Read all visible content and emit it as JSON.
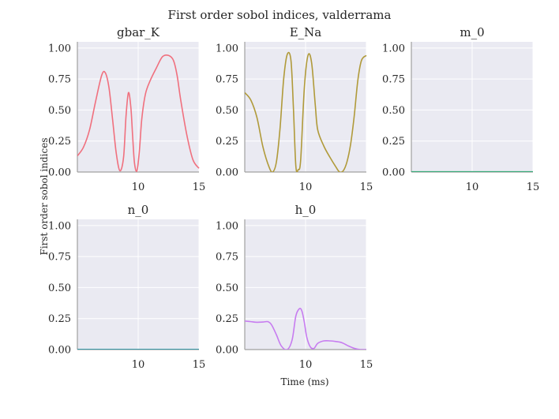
{
  "figure": {
    "title": "First order sobol indices, valderrama",
    "xlabel": "Time (ms)",
    "ylabel": "First order sobol indices"
  },
  "style": {
    "panel_bg": "#eaeaf2",
    "grid": "#ffffff",
    "spine": "#a0a0a0",
    "text": "#262626"
  },
  "chart_data": [
    {
      "type": "line",
      "title": "gbar_K",
      "color": "#f0707e",
      "xlim": [
        5,
        15
      ],
      "ylim": [
        0,
        1.05
      ],
      "xticks": [
        10,
        15
      ],
      "yticks": [
        0.0,
        0.25,
        0.5,
        0.75,
        1.0
      ],
      "xtick_labels": [
        "10",
        "15"
      ],
      "ytick_labels": [
        "0.00",
        "0.25",
        "0.50",
        "0.75",
        "1.00"
      ],
      "show_xticklabels": true,
      "x": [
        5.0,
        5.5,
        6.0,
        6.5,
        7.0,
        7.3,
        7.6,
        7.9,
        8.2,
        8.5,
        8.8,
        9.0,
        9.2,
        9.4,
        9.55,
        9.7,
        9.9,
        10.1,
        10.3,
        10.6,
        11.0,
        11.5,
        12.0,
        12.5,
        12.9,
        13.2,
        13.5,
        14.0,
        14.5,
        15.0
      ],
      "y": [
        0.13,
        0.2,
        0.34,
        0.57,
        0.78,
        0.8,
        0.68,
        0.42,
        0.15,
        0.01,
        0.12,
        0.45,
        0.64,
        0.52,
        0.28,
        0.07,
        0.01,
        0.17,
        0.43,
        0.63,
        0.74,
        0.84,
        0.93,
        0.94,
        0.9,
        0.78,
        0.58,
        0.3,
        0.1,
        0.03
      ]
    },
    {
      "type": "line",
      "title": "E_Na",
      "color": "#b09a3a",
      "xlim": [
        5,
        15
      ],
      "ylim": [
        0,
        1.05
      ],
      "xticks": [
        10,
        15
      ],
      "yticks": [
        0.0,
        0.25,
        0.5,
        0.75,
        1.0
      ],
      "xtick_labels": [
        "10",
        "15"
      ],
      "ytick_labels": [
        "0.00",
        "0.25",
        "0.50",
        "0.75",
        "1.00"
      ],
      "show_xticklabels": true,
      "x": [
        5.0,
        5.5,
        6.0,
        6.5,
        7.0,
        7.3,
        7.6,
        7.9,
        8.2,
        8.5,
        8.8,
        9.0,
        9.2,
        9.4,
        9.6,
        9.9,
        10.2,
        10.5,
        10.8,
        11.0,
        11.5,
        12.0,
        12.5,
        12.8,
        13.1,
        13.4,
        13.7,
        14.0,
        14.3,
        14.6,
        15.0
      ],
      "y": [
        0.64,
        0.58,
        0.44,
        0.2,
        0.04,
        0.0,
        0.08,
        0.35,
        0.75,
        0.95,
        0.9,
        0.52,
        0.05,
        0.02,
        0.1,
        0.68,
        0.94,
        0.88,
        0.54,
        0.34,
        0.21,
        0.12,
        0.04,
        0.0,
        0.01,
        0.08,
        0.22,
        0.45,
        0.74,
        0.9,
        0.94
      ]
    },
    {
      "type": "line",
      "title": "m_0",
      "color": "#3aaa7a",
      "xlim": [
        5,
        15
      ],
      "ylim": [
        0,
        1.05
      ],
      "xticks": [
        10,
        15
      ],
      "yticks": [
        0.0,
        0.25,
        0.5,
        0.75,
        1.0
      ],
      "xtick_labels": [
        "10",
        "15"
      ],
      "ytick_labels": [
        "0.00",
        "0.25",
        "0.50",
        "0.75",
        "1.00"
      ],
      "show_xticklabels": true,
      "x": [
        5.0,
        7.5,
        10.0,
        12.5,
        15.0
      ],
      "y": [
        0.002,
        0.002,
        0.002,
        0.002,
        0.002
      ]
    },
    {
      "type": "line",
      "title": "n_0",
      "color": "#3a9aaa",
      "xlim": [
        5,
        15
      ],
      "ylim": [
        0,
        1.05
      ],
      "xticks": [
        10,
        15
      ],
      "yticks": [
        0.0,
        0.25,
        0.5,
        0.75,
        1.0
      ],
      "xtick_labels": [
        "10",
        "15"
      ],
      "ytick_labels": [
        "0.00",
        "0.25",
        "0.50",
        "0.75",
        "1.00"
      ],
      "show_xticklabels": true,
      "x": [
        5.0,
        7.5,
        10.0,
        12.5,
        15.0
      ],
      "y": [
        0.001,
        0.001,
        0.001,
        0.001,
        0.001
      ]
    },
    {
      "type": "line",
      "title": "h_0",
      "color": "#c77cf0",
      "xlim": [
        5,
        15
      ],
      "ylim": [
        0,
        1.05
      ],
      "xticks": [
        10,
        15
      ],
      "yticks": [
        0.0,
        0.25,
        0.5,
        0.75,
        1.0
      ],
      "xtick_labels": [
        "10",
        "15"
      ],
      "ytick_labels": [
        "0.00",
        "0.25",
        "0.50",
        "0.75",
        "1.00"
      ],
      "show_xticklabels": true,
      "x": [
        5.0,
        5.5,
        6.0,
        6.5,
        6.9,
        7.2,
        7.6,
        8.0,
        8.5,
        8.9,
        9.2,
        9.5,
        9.7,
        9.9,
        10.1,
        10.4,
        10.7,
        11.0,
        11.5,
        12.0,
        12.5,
        13.0,
        13.5,
        14.0,
        14.5,
        15.0
      ],
      "y": [
        0.23,
        0.225,
        0.22,
        0.222,
        0.225,
        0.2,
        0.12,
        0.03,
        0.0,
        0.08,
        0.27,
        0.33,
        0.31,
        0.22,
        0.1,
        0.02,
        0.01,
        0.05,
        0.07,
        0.07,
        0.065,
        0.055,
        0.03,
        0.01,
        0.0,
        0.0
      ]
    }
  ]
}
